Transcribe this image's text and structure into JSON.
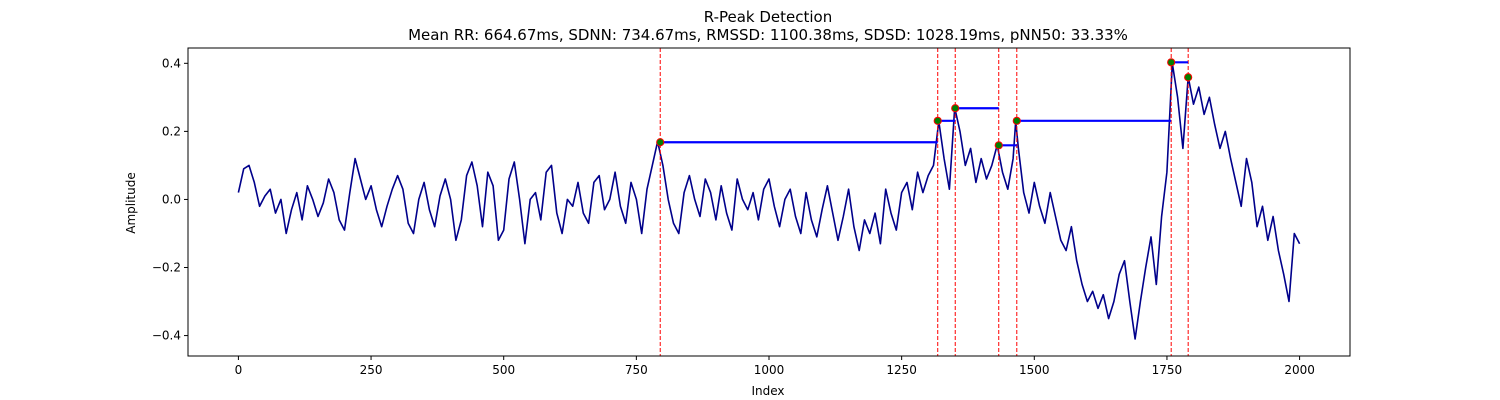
{
  "chart_data": {
    "type": "line",
    "title": "R-Peak Detection",
    "subtitle": "Mean RR: 664.67ms, SDNN: 734.67ms, RMSSD: 1100.38ms, SDSD: 1028.19ms, pNN50: 33.33%",
    "xlabel": "Index",
    "ylabel": "Amplitude",
    "xlim": [
      -95,
      2095
    ],
    "ylim": [
      -0.46,
      0.445
    ],
    "xticks": [
      0,
      250,
      500,
      750,
      1000,
      1250,
      1500,
      1750,
      2000
    ],
    "yticks": [
      -0.4,
      -0.2,
      0.0,
      0.2,
      0.4
    ],
    "grid": false,
    "colors": {
      "signal": "#00008b",
      "peak_lines": "#ff0000",
      "rr_segments": "#0000ff",
      "peak_marker_fill": "#008000",
      "peak_marker_edge": "#ff0000"
    },
    "signal_knots": [
      [
        0,
        0.02
      ],
      [
        10,
        0.09
      ],
      [
        20,
        0.1
      ],
      [
        30,
        0.05
      ],
      [
        40,
        -0.02
      ],
      [
        50,
        0.01
      ],
      [
        60,
        0.03
      ],
      [
        70,
        -0.04
      ],
      [
        80,
        0.0
      ],
      [
        90,
        -0.1
      ],
      [
        100,
        -0.03
      ],
      [
        110,
        0.02
      ],
      [
        120,
        -0.06
      ],
      [
        130,
        0.04
      ],
      [
        140,
        0.0
      ],
      [
        150,
        -0.05
      ],
      [
        160,
        -0.01
      ],
      [
        170,
        0.06
      ],
      [
        180,
        0.02
      ],
      [
        190,
        -0.06
      ],
      [
        200,
        -0.09
      ],
      [
        210,
        0.02
      ],
      [
        220,
        0.12
      ],
      [
        230,
        0.06
      ],
      [
        240,
        0.0
      ],
      [
        250,
        0.04
      ],
      [
        260,
        -0.03
      ],
      [
        270,
        -0.08
      ],
      [
        280,
        -0.02
      ],
      [
        290,
        0.03
      ],
      [
        300,
        0.07
      ],
      [
        310,
        0.03
      ],
      [
        320,
        -0.07
      ],
      [
        330,
        -0.1
      ],
      [
        340,
        0.0
      ],
      [
        350,
        0.05
      ],
      [
        360,
        -0.03
      ],
      [
        370,
        -0.08
      ],
      [
        380,
        0.01
      ],
      [
        390,
        0.06
      ],
      [
        400,
        0.0
      ],
      [
        410,
        -0.12
      ],
      [
        420,
        -0.06
      ],
      [
        430,
        0.07
      ],
      [
        440,
        0.11
      ],
      [
        450,
        0.04
      ],
      [
        460,
        -0.08
      ],
      [
        470,
        0.08
      ],
      [
        480,
        0.04
      ],
      [
        490,
        -0.12
      ],
      [
        500,
        -0.09
      ],
      [
        510,
        0.06
      ],
      [
        520,
        0.11
      ],
      [
        530,
        0.0
      ],
      [
        540,
        -0.13
      ],
      [
        550,
        0.0
      ],
      [
        560,
        0.02
      ],
      [
        570,
        -0.06
      ],
      [
        580,
        0.08
      ],
      [
        590,
        0.1
      ],
      [
        600,
        -0.04
      ],
      [
        610,
        -0.1
      ],
      [
        620,
        0.0
      ],
      [
        630,
        -0.02
      ],
      [
        640,
        0.05
      ],
      [
        650,
        -0.04
      ],
      [
        660,
        -0.07
      ],
      [
        670,
        0.05
      ],
      [
        680,
        0.07
      ],
      [
        690,
        -0.03
      ],
      [
        700,
        0.0
      ],
      [
        710,
        0.08
      ],
      [
        720,
        -0.02
      ],
      [
        730,
        -0.07
      ],
      [
        740,
        0.05
      ],
      [
        750,
        0.0
      ],
      [
        760,
        -0.1
      ],
      [
        770,
        0.03
      ],
      [
        780,
        0.1
      ],
      [
        790,
        0.17
      ],
      [
        800,
        0.1
      ],
      [
        810,
        0.0
      ],
      [
        820,
        -0.07
      ],
      [
        830,
        -0.1
      ],
      [
        840,
        0.02
      ],
      [
        850,
        0.07
      ],
      [
        860,
        0.0
      ],
      [
        870,
        -0.05
      ],
      [
        880,
        0.06
      ],
      [
        890,
        0.02
      ],
      [
        900,
        -0.06
      ],
      [
        910,
        0.04
      ],
      [
        920,
        -0.04
      ],
      [
        930,
        -0.09
      ],
      [
        940,
        0.06
      ],
      [
        950,
        0.0
      ],
      [
        960,
        -0.03
      ],
      [
        970,
        0.02
      ],
      [
        980,
        -0.06
      ],
      [
        990,
        0.03
      ],
      [
        1000,
        0.06
      ],
      [
        1010,
        -0.02
      ],
      [
        1020,
        -0.08
      ],
      [
        1030,
        0.0
      ],
      [
        1040,
        0.03
      ],
      [
        1050,
        -0.05
      ],
      [
        1060,
        -0.1
      ],
      [
        1070,
        0.02
      ],
      [
        1080,
        -0.06
      ],
      [
        1090,
        -0.11
      ],
      [
        1100,
        -0.03
      ],
      [
        1110,
        0.04
      ],
      [
        1120,
        -0.04
      ],
      [
        1130,
        -0.12
      ],
      [
        1140,
        -0.05
      ],
      [
        1150,
        0.03
      ],
      [
        1160,
        -0.08
      ],
      [
        1170,
        -0.15
      ],
      [
        1180,
        -0.06
      ],
      [
        1190,
        -0.1
      ],
      [
        1200,
        -0.04
      ],
      [
        1210,
        -0.13
      ],
      [
        1220,
        0.03
      ],
      [
        1230,
        -0.04
      ],
      [
        1240,
        -0.09
      ],
      [
        1250,
        0.02
      ],
      [
        1260,
        0.05
      ],
      [
        1270,
        -0.03
      ],
      [
        1280,
        0.08
      ],
      [
        1290,
        0.02
      ],
      [
        1300,
        0.07
      ],
      [
        1310,
        0.1
      ],
      [
        1320,
        0.23
      ],
      [
        1330,
        0.12
      ],
      [
        1340,
        0.03
      ],
      [
        1350,
        0.27
      ],
      [
        1360,
        0.2
      ],
      [
        1370,
        0.1
      ],
      [
        1380,
        0.15
      ],
      [
        1390,
        0.05
      ],
      [
        1400,
        0.12
      ],
      [
        1410,
        0.06
      ],
      [
        1420,
        0.1
      ],
      [
        1430,
        0.16
      ],
      [
        1440,
        0.08
      ],
      [
        1450,
        0.03
      ],
      [
        1460,
        0.12
      ],
      [
        1465,
        0.23
      ],
      [
        1470,
        0.15
      ],
      [
        1480,
        0.02
      ],
      [
        1490,
        -0.04
      ],
      [
        1500,
        0.05
      ],
      [
        1510,
        -0.02
      ],
      [
        1520,
        -0.07
      ],
      [
        1530,
        0.02
      ],
      [
        1540,
        -0.05
      ],
      [
        1550,
        -0.12
      ],
      [
        1560,
        -0.15
      ],
      [
        1570,
        -0.08
      ],
      [
        1580,
        -0.18
      ],
      [
        1590,
        -0.25
      ],
      [
        1600,
        -0.3
      ],
      [
        1610,
        -0.27
      ],
      [
        1620,
        -0.32
      ],
      [
        1630,
        -0.28
      ],
      [
        1640,
        -0.35
      ],
      [
        1650,
        -0.3
      ],
      [
        1660,
        -0.22
      ],
      [
        1670,
        -0.18
      ],
      [
        1680,
        -0.3
      ],
      [
        1690,
        -0.41
      ],
      [
        1700,
        -0.3
      ],
      [
        1710,
        -0.2
      ],
      [
        1720,
        -0.11
      ],
      [
        1730,
        -0.25
      ],
      [
        1740,
        -0.05
      ],
      [
        1750,
        0.08
      ],
      [
        1760,
        0.4
      ],
      [
        1770,
        0.3
      ],
      [
        1780,
        0.15
      ],
      [
        1790,
        0.36
      ],
      [
        1800,
        0.28
      ],
      [
        1810,
        0.33
      ],
      [
        1820,
        0.25
      ],
      [
        1830,
        0.3
      ],
      [
        1840,
        0.22
      ],
      [
        1850,
        0.15
      ],
      [
        1860,
        0.2
      ],
      [
        1870,
        0.12
      ],
      [
        1880,
        0.05
      ],
      [
        1890,
        -0.02
      ],
      [
        1900,
        0.12
      ],
      [
        1910,
        0.05
      ],
      [
        1920,
        -0.08
      ],
      [
        1930,
        -0.02
      ],
      [
        1940,
        -0.12
      ],
      [
        1950,
        -0.05
      ],
      [
        1960,
        -0.15
      ],
      [
        1970,
        -0.22
      ],
      [
        1980,
        -0.3
      ],
      [
        1990,
        -0.1
      ],
      [
        2000,
        -0.13
      ]
    ],
    "peaks": [
      {
        "x": 795,
        "y": 0.168
      },
      {
        "x": 1318,
        "y": 0.231
      },
      {
        "x": 1351,
        "y": 0.268
      },
      {
        "x": 1433,
        "y": 0.159
      },
      {
        "x": 1467,
        "y": 0.231
      },
      {
        "x": 1758,
        "y": 0.403
      },
      {
        "x": 1790,
        "y": 0.359
      }
    ],
    "rr_segments": [
      {
        "x0": 795,
        "x1": 1318,
        "y": 0.168
      },
      {
        "x0": 1318,
        "x1": 1351,
        "y": 0.231
      },
      {
        "x0": 1351,
        "x1": 1433,
        "y": 0.268
      },
      {
        "x0": 1433,
        "x1": 1467,
        "y": 0.159
      },
      {
        "x0": 1467,
        "x1": 1758,
        "y": 0.231
      },
      {
        "x0": 1758,
        "x1": 1790,
        "y": 0.403
      }
    ]
  }
}
